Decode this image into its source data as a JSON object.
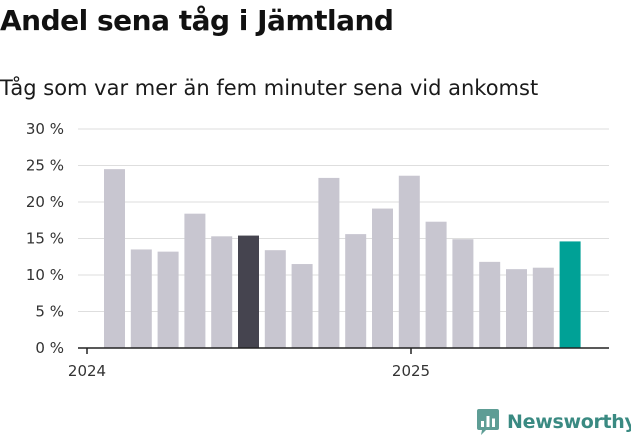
{
  "chart_data": {
    "type": "bar",
    "title": "Andel sena tåg i Jämtland",
    "subtitle": "Tåg som var mer än fem minuter sena vid ankomst",
    "xlabel": "",
    "ylabel": "",
    "x_tick_labels": [
      "2024",
      "2025"
    ],
    "y_tick_labels": [
      "0 %",
      "5 %",
      "10 %",
      "15 %",
      "20 %",
      "25 %",
      "30 %"
    ],
    "ylim": [
      0,
      30
    ],
    "grid": true,
    "categories": [
      "2024-01",
      "2024-02",
      "2024-03",
      "2024-04",
      "2024-05",
      "2024-06",
      "2024-07",
      "2024-08",
      "2024-09",
      "2024-10",
      "2024-11",
      "2024-12",
      "2025-01",
      "2025-02",
      "2025-03",
      "2025-04",
      "2025-05",
      "2025-06"
    ],
    "values": [
      24.5,
      13.5,
      13.2,
      18.4,
      15.3,
      15.4,
      13.4,
      11.5,
      23.3,
      15.6,
      19.1,
      23.6,
      17.3,
      14.9,
      11.8,
      10.8,
      11.0,
      14.6
    ],
    "colors": {
      "default": "#c8c6d0",
      "highlight_previous_year": "#45444f",
      "highlight_latest": "#00a196"
    },
    "highlight_previous_year_index": 5,
    "highlight_latest_index": 17
  },
  "brand": {
    "name": "Newsworthy",
    "logo_icon": "newsworthy-chart-icon",
    "color": "#3a8a82"
  }
}
